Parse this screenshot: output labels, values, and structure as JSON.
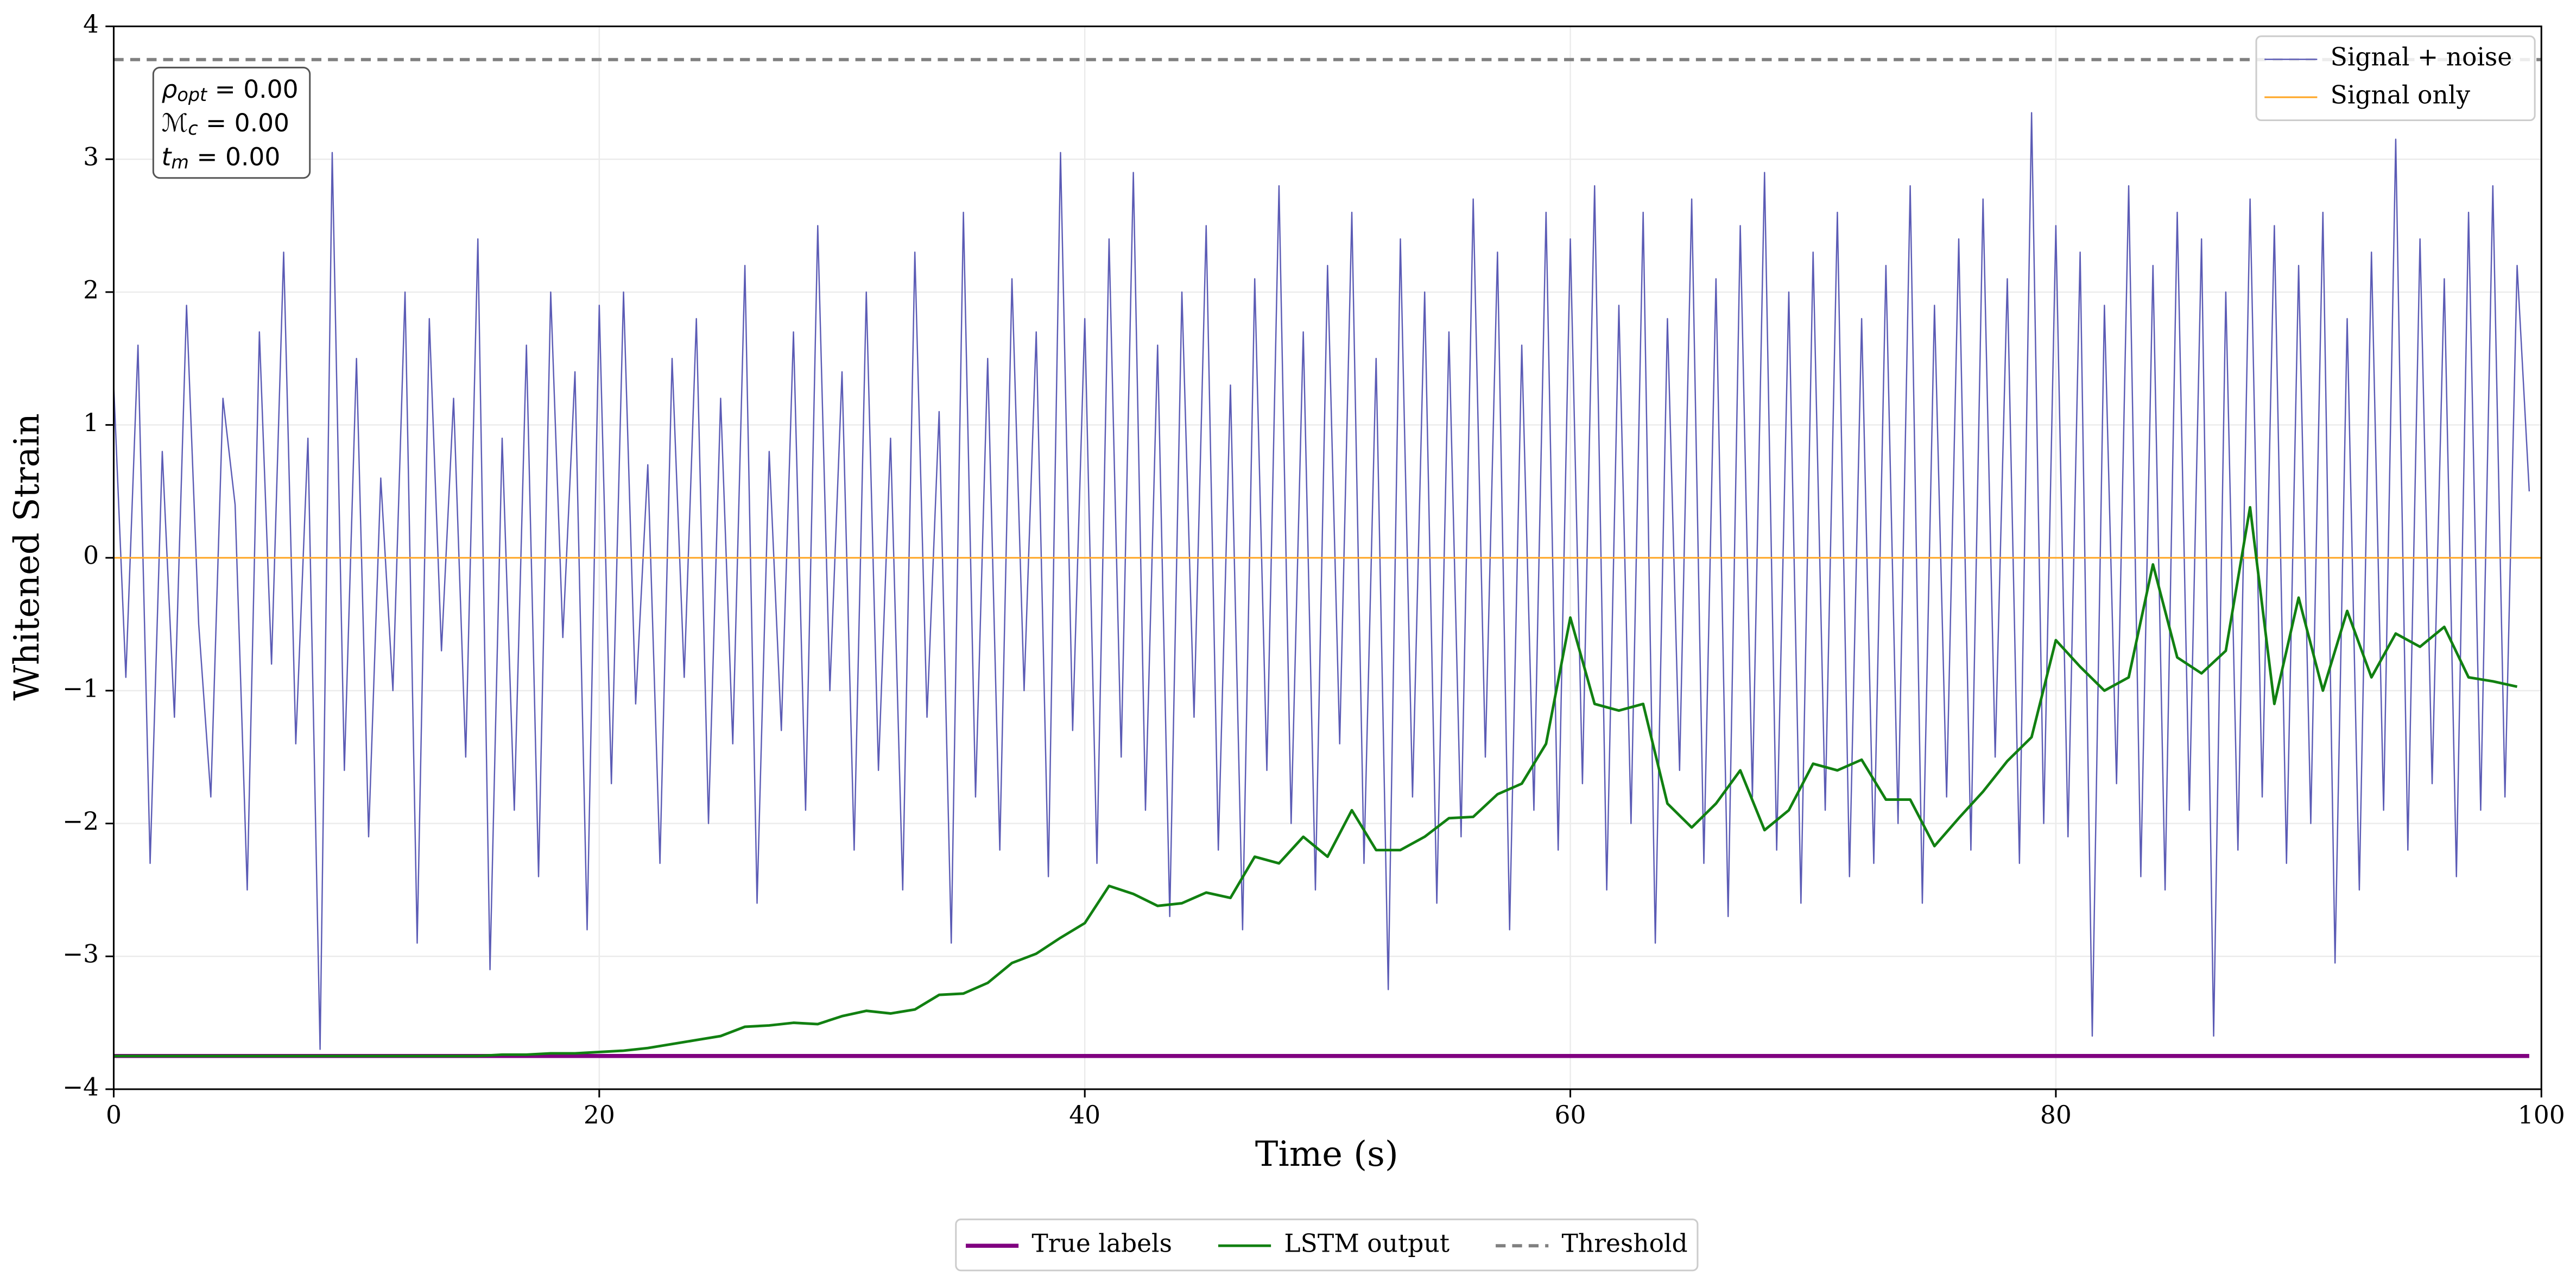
{
  "chart_data": {
    "type": "line",
    "xlabel": "Time (s)",
    "ylabel": "Whitened Strain",
    "xlim": [
      0,
      100
    ],
    "ylim": [
      -4,
      4
    ],
    "xticks": [
      0,
      20,
      40,
      60,
      80,
      100
    ],
    "yticks": [
      {
        "value": -4,
        "label": "−4"
      },
      {
        "value": -3,
        "label": "−3"
      },
      {
        "value": -2,
        "label": "−2"
      },
      {
        "value": -1,
        "label": "−1"
      },
      0,
      1,
      2,
      3,
      4
    ],
    "grid": true,
    "annotations": [
      {
        "symbol": "ρ",
        "sub": "opt",
        "rest": " = 0.00"
      },
      {
        "symbol": "ℳ",
        "sub": "c",
        "rest": " = 0.00"
      },
      {
        "symbol": "t",
        "sub": "m",
        "rest": " = 0.00"
      }
    ],
    "series": [
      {
        "name": "Signal + noise",
        "color": "#5b5bb5",
        "width": 0.8,
        "legend": "upper right",
        "x": [
          0,
          0.5,
          1,
          1.5,
          2,
          2.5,
          3,
          3.5,
          4,
          4.5,
          5,
          5.5,
          6,
          6.5,
          7,
          7.5,
          8,
          8.5,
          9,
          9.5,
          10,
          10.5,
          11,
          11.5,
          12,
          12.5,
          13,
          13.5,
          14,
          14.5,
          15,
          15.5,
          16,
          16.5,
          17,
          17.5,
          18,
          18.5,
          19,
          19.5,
          20,
          20.5,
          21,
          21.5,
          22,
          22.5,
          23,
          23.5,
          24,
          24.5,
          25,
          25.5,
          26,
          26.5,
          27,
          27.5,
          28,
          28.5,
          29,
          29.5,
          30,
          30.5,
          31,
          31.5,
          32,
          32.5,
          33,
          33.5,
          34,
          34.5,
          35,
          35.5,
          36,
          36.5,
          37,
          37.5,
          38,
          38.5,
          39,
          39.5,
          40,
          40.5,
          41,
          41.5,
          42,
          42.5,
          43,
          43.5,
          44,
          44.5,
          45,
          45.5,
          46,
          46.5,
          47,
          47.5,
          48,
          48.5,
          49,
          49.5,
          50,
          50.5,
          51,
          51.5,
          52,
          52.5,
          53,
          53.5,
          54,
          54.5,
          55,
          55.5,
          56,
          56.5,
          57,
          57.5,
          58,
          58.5,
          59,
          59.5,
          60,
          60.5,
          61,
          61.5,
          62,
          62.5,
          63,
          63.5,
          64,
          64.5,
          65,
          65.5,
          66,
          66.5,
          67,
          67.5,
          68,
          68.5,
          69,
          69.5,
          70,
          70.5,
          71,
          71.5,
          72,
          72.5,
          73,
          73.5,
          74,
          74.5,
          75,
          75.5,
          76,
          76.5,
          77,
          77.5,
          78,
          78.5,
          79,
          79.5,
          80,
          80.5,
          81,
          81.5,
          82,
          82.5,
          83,
          83.5,
          84,
          84.5,
          85,
          85.5,
          86,
          86.5,
          87,
          87.5,
          88,
          88.5,
          89,
          89.5,
          90,
          90.5,
          91,
          91.5,
          92,
          92.5,
          93,
          93.5,
          94,
          94.5,
          95,
          95.5,
          96,
          96.5,
          97,
          97.5,
          98,
          98.5,
          99,
          99.5
        ],
        "values": [
          1.3,
          -0.9,
          1.6,
          -2.3,
          0.8,
          -1.2,
          1.9,
          -0.5,
          -1.8,
          1.2,
          0.4,
          -2.5,
          1.7,
          -0.8,
          2.3,
          -1.4,
          0.9,
          -3.7,
          3.05,
          -1.6,
          1.5,
          -2.1,
          0.6,
          -1.0,
          2.0,
          -2.9,
          1.8,
          -0.7,
          1.2,
          -1.5,
          2.4,
          -3.1,
          0.9,
          -1.9,
          1.6,
          -2.4,
          2.0,
          -0.6,
          1.4,
          -2.8,
          1.9,
          -1.7,
          2.0,
          -1.1,
          0.7,
          -2.3,
          1.5,
          -0.9,
          1.8,
          -2.0,
          1.2,
          -1.4,
          2.2,
          -2.6,
          0.8,
          -1.3,
          1.7,
          -1.9,
          2.5,
          -1.0,
          1.4,
          -2.2,
          2.0,
          -1.6,
          0.9,
          -2.5,
          2.3,
          -1.2,
          1.1,
          -2.9,
          2.6,
          -1.8,
          1.5,
          -2.2,
          2.1,
          -1.0,
          1.7,
          -2.4,
          3.05,
          -1.3,
          1.8,
          -2.3,
          2.4,
          -1.5,
          2.9,
          -1.9,
          1.6,
          -2.7,
          2.0,
          -1.2,
          2.5,
          -2.2,
          1.3,
          -2.8,
          2.1,
          -1.6,
          2.8,
          -2.0,
          1.7,
          -2.5,
          2.2,
          -1.4,
          2.6,
          -2.3,
          1.5,
          -3.25,
          2.4,
          -1.8,
          2.0,
          -2.6,
          1.7,
          -2.1,
          2.7,
          -1.5,
          2.3,
          -2.8,
          1.6,
          -1.9,
          2.6,
          -2.2,
          2.4,
          -1.7,
          2.8,
          -2.5,
          1.9,
          -2.0,
          2.6,
          -2.9,
          1.8,
          -1.6,
          2.7,
          -2.3,
          2.1,
          -2.7,
          2.5,
          -1.8,
          2.9,
          -2.2,
          2.0,
          -2.6,
          2.3,
          -1.9,
          2.6,
          -2.4,
          1.8,
          -2.3,
          2.2,
          -2.0,
          2.8,
          -2.6,
          1.9,
          -1.8,
          2.4,
          -2.2,
          2.7,
          -1.5,
          2.1,
          -2.3,
          3.35,
          -2.0,
          2.5,
          -2.1,
          2.3,
          -3.6,
          1.9,
          -1.7,
          2.8,
          -2.4,
          2.2,
          -2.5,
          2.6,
          -1.9,
          2.4,
          -3.6,
          2.0,
          -2.2,
          2.7,
          -1.8,
          2.5,
          -2.3,
          2.2,
          -2.0,
          2.6,
          -3.05,
          1.8,
          -2.5,
          2.3,
          -1.9,
          3.15,
          -2.2,
          2.4,
          -1.7,
          2.1,
          -2.4,
          2.6,
          -1.9,
          2.8,
          -1.8,
          2.2,
          0.5
        ]
      },
      {
        "name": "Signal only",
        "color": "#ffa726",
        "width": 1,
        "legend": "upper right",
        "x": [
          0,
          100
        ],
        "values": [
          0,
          0
        ]
      },
      {
        "name": "True labels",
        "color": "#800080",
        "width": 2.5,
        "legend": "below",
        "x": [
          0,
          99.5
        ],
        "values": [
          -3.75,
          -3.75
        ]
      },
      {
        "name": "LSTM output",
        "color": "#118011",
        "width": 1.6,
        "legend": "below",
        "x": [
          0,
          1,
          2,
          3,
          4,
          5,
          6,
          7,
          8,
          9,
          10,
          11,
          12,
          13,
          14,
          15,
          16,
          17,
          18,
          19,
          20,
          21,
          22,
          23,
          24,
          25,
          26,
          27,
          28,
          29,
          30,
          31,
          32,
          33,
          34,
          35,
          36,
          37,
          38,
          39,
          40,
          41,
          42,
          43,
          44,
          45,
          46,
          47,
          48,
          49,
          50,
          51,
          52,
          53,
          54,
          55,
          56,
          57,
          58,
          59,
          60,
          61,
          62,
          63,
          64,
          65,
          66,
          67,
          68,
          69,
          70,
          71,
          72,
          73,
          74,
          75,
          76,
          77,
          78,
          79,
          80,
          81,
          82,
          83,
          84,
          85,
          86,
          87,
          88,
          89,
          90,
          91,
          92,
          93,
          94,
          95,
          96,
          97,
          98,
          99
        ],
        "values": [
          -3.75,
          -3.75,
          -3.75,
          -3.75,
          -3.75,
          -3.75,
          -3.75,
          -3.75,
          -3.75,
          -3.75,
          -3.75,
          -3.75,
          -3.75,
          -3.75,
          -3.75,
          -3.75,
          -3.74,
          -3.74,
          -3.73,
          -3.73,
          -3.72,
          -3.71,
          -3.69,
          -3.66,
          -3.63,
          -3.6,
          -3.53,
          -3.52,
          -3.5,
          -3.51,
          -3.45,
          -3.41,
          -3.43,
          -3.4,
          -3.29,
          -3.28,
          -3.2,
          -3.05,
          -2.98,
          -2.86,
          -2.75,
          -2.47,
          -2.53,
          -2.62,
          -2.6,
          -2.52,
          -2.56,
          -2.25,
          -2.3,
          -2.1,
          -2.25,
          -1.9,
          -2.2,
          -2.2,
          -2.1,
          -1.96,
          -1.95,
          -1.78,
          -1.7,
          -1.4,
          -0.45,
          -1.1,
          -1.15,
          -1.1,
          -1.85,
          -2.03,
          -1.85,
          -1.6,
          -2.05,
          -1.9,
          -1.55,
          -1.6,
          -1.52,
          -1.82,
          -1.82,
          -2.17,
          -1.96,
          -1.76,
          -1.53,
          -1.35,
          -0.62,
          -0.82,
          -1.0,
          -0.9,
          -0.05,
          -0.75,
          -0.87,
          -0.7,
          0.38,
          -1.1,
          -0.3,
          -1.0,
          -0.4,
          -0.9,
          -0.57,
          -0.67,
          -0.52,
          -0.9,
          -0.93,
          -0.97
        ]
      },
      {
        "name": "Threshold",
        "color": "#808080",
        "width": 2,
        "dash": true,
        "legend": "below",
        "x": [
          0,
          100
        ],
        "values": [
          3.75,
          3.75
        ]
      }
    ]
  }
}
